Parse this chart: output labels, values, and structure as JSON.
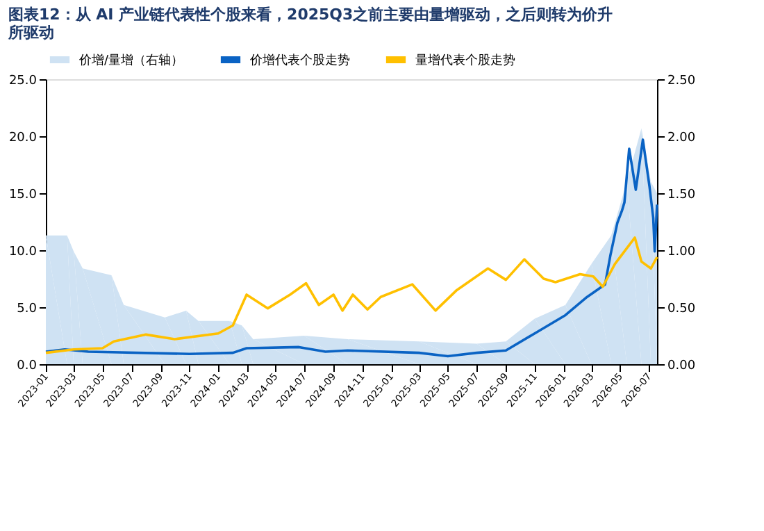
{
  "chart_data": {
    "type": "line",
    "title": "图表12：从 AI 产业链代表性个股来看，2025Q3之前主要由量增驱动，之后则转为价升所驱动",
    "xlim": [
      "2023-01-01",
      "2026-07-18"
    ],
    "xticks": [
      {
        "value": "2023-01-01",
        "label": "2023-01"
      },
      {
        "value": "2023-03-01",
        "label": "2023-03"
      },
      {
        "value": "2023-05-01",
        "label": "2023-05"
      },
      {
        "value": "2023-07-01",
        "label": "2023-07"
      },
      {
        "value": "2023-09-01",
        "label": "2023-09"
      },
      {
        "value": "2023-11-01",
        "label": "2023-11"
      },
      {
        "value": "2024-01-01",
        "label": "2024-01"
      },
      {
        "value": "2024-03-01",
        "label": "2024-03"
      },
      {
        "value": "2024-05-01",
        "label": "2024-05"
      },
      {
        "value": "2024-07-01",
        "label": "2024-07"
      },
      {
        "value": "2024-09-01",
        "label": "2024-09"
      },
      {
        "value": "2024-11-01",
        "label": "2024-11"
      },
      {
        "value": "2025-01-01",
        "label": "2025-01"
      },
      {
        "value": "2025-03-01",
        "label": "2025-03"
      },
      {
        "value": "2025-05-01",
        "label": "2025-05"
      },
      {
        "value": "2025-07-01",
        "label": "2025-07"
      },
      {
        "value": "2025-09-01",
        "label": "2025-09"
      },
      {
        "value": "2025-11-01",
        "label": "2025-11"
      },
      {
        "value": "2026-01-01",
        "label": "2026-01"
      },
      {
        "value": "2026-03-01",
        "label": "2026-03"
      },
      {
        "value": "2026-05-01",
        "label": "2026-05"
      },
      {
        "value": "2026-07-01",
        "label": "2026-07"
      }
    ],
    "ylim": [
      0,
      25
    ],
    "yticks": [
      {
        "value": 0,
        "label": "0.0"
      },
      {
        "value": 5,
        "label": "5.0"
      },
      {
        "value": 10,
        "label": "10.0"
      },
      {
        "value": 15,
        "label": "15.0"
      },
      {
        "value": 20,
        "label": "20.0"
      },
      {
        "value": 25,
        "label": "25.0"
      }
    ],
    "y2lim": [
      0,
      2.5
    ],
    "y2ticks": [
      {
        "value": 0,
        "label": "0.00"
      },
      {
        "value": 0.5,
        "label": "0.50"
      },
      {
        "value": 1,
        "label": "1.00"
      },
      {
        "value": 1.5,
        "label": "1.50"
      },
      {
        "value": 2,
        "label": "2.00"
      },
      {
        "value": 2.5,
        "label": "2.50"
      }
    ],
    "grid": false,
    "legend": "top",
    "line_style": "solid",
    "marker": "none",
    "series": [
      {
        "name": "价增/量增（右轴）",
        "type": "area",
        "axis": "y2",
        "color": "#cfe2f3",
        "x": [
          "2023-01-01",
          "2023-02-15",
          "2023-03-01",
          "2023-03-20",
          "2023-05-20",
          "2023-06-15",
          "2023-09-10",
          "2023-10-25",
          "2023-11-20",
          "2024-01-25",
          "2024-02-20",
          "2024-03-15",
          "2024-07-01",
          "2024-10-01",
          "2025-03-01",
          "2025-07-01",
          "2025-09-01",
          "2025-11-01",
          "2026-01-05",
          "2026-03-01",
          "2026-04-12",
          "2026-05-15",
          "2026-06-15",
          "2026-07-05",
          "2026-07-18"
        ],
        "values": [
          1.13,
          1.13,
          0.99,
          0.84,
          0.78,
          0.52,
          0.41,
          0.47,
          0.38,
          0.38,
          0.34,
          0.22,
          0.25,
          0.22,
          0.2,
          0.18,
          0.2,
          0.4,
          0.52,
          0.88,
          1.13,
          1.6,
          2.07,
          1.6,
          1.5
        ]
      },
      {
        "name": "价增代表个股走势",
        "type": "line",
        "color": "#0a63c4",
        "x": [
          "2023-01-01",
          "2023-02-10",
          "2023-04-01",
          "2023-11-01",
          "2024-02-01",
          "2024-03-01",
          "2024-06-20",
          "2024-08-15",
          "2024-10-01",
          "2025-03-01",
          "2025-05-01",
          "2025-07-01",
          "2025-09-01",
          "2025-11-01",
          "2026-01-05",
          "2026-02-20",
          "2026-03-30",
          "2026-04-10",
          "2026-04-25",
          "2026-05-05",
          "2026-05-10",
          "2026-05-20",
          "2026-06-03",
          "2026-06-18",
          "2026-07-02",
          "2026-07-10",
          "2026-07-13",
          "2026-07-18"
        ],
        "values": [
          1.1,
          1.3,
          1.1,
          0.9,
          1.0,
          1.4,
          1.5,
          1.1,
          1.2,
          1.0,
          0.7,
          1.0,
          1.2,
          2.7,
          4.3,
          5.9,
          7.0,
          9.5,
          12.4,
          13.5,
          14.2,
          18.9,
          15.3,
          19.7,
          15.6,
          12.8,
          9.9,
          14.0
        ]
      },
      {
        "name": "量增代表个股走势",
        "type": "line",
        "color": "#ffc000",
        "x": [
          "2023-01-01",
          "2023-03-01",
          "2023-05-01",
          "2023-05-25",
          "2023-08-01",
          "2023-10-01",
          "2024-01-01",
          "2024-02-01",
          "2024-03-01",
          "2024-04-15",
          "2024-06-01",
          "2024-07-05",
          "2024-08-01",
          "2024-09-01",
          "2024-09-20",
          "2024-10-12",
          "2024-11-12",
          "2024-12-10",
          "2025-02-15",
          "2025-04-05",
          "2025-05-20",
          "2025-07-25",
          "2025-09-01",
          "2025-10-10",
          "2025-11-20",
          "2025-12-15",
          "2026-02-05",
          "2026-03-05",
          "2026-03-25",
          "2026-04-20",
          "2026-06-01",
          "2026-06-15",
          "2026-07-05",
          "2026-07-18"
        ],
        "values": [
          1.0,
          1.3,
          1.4,
          2.0,
          2.6,
          2.2,
          2.7,
          3.4,
          6.1,
          4.9,
          6.1,
          7.1,
          5.2,
          6.1,
          4.7,
          6.1,
          4.8,
          5.9,
          7.0,
          4.7,
          6.5,
          8.4,
          7.4,
          9.2,
          7.5,
          7.2,
          7.9,
          7.7,
          6.8,
          8.8,
          11.1,
          9.0,
          8.4,
          9.4
        ]
      }
    ]
  }
}
